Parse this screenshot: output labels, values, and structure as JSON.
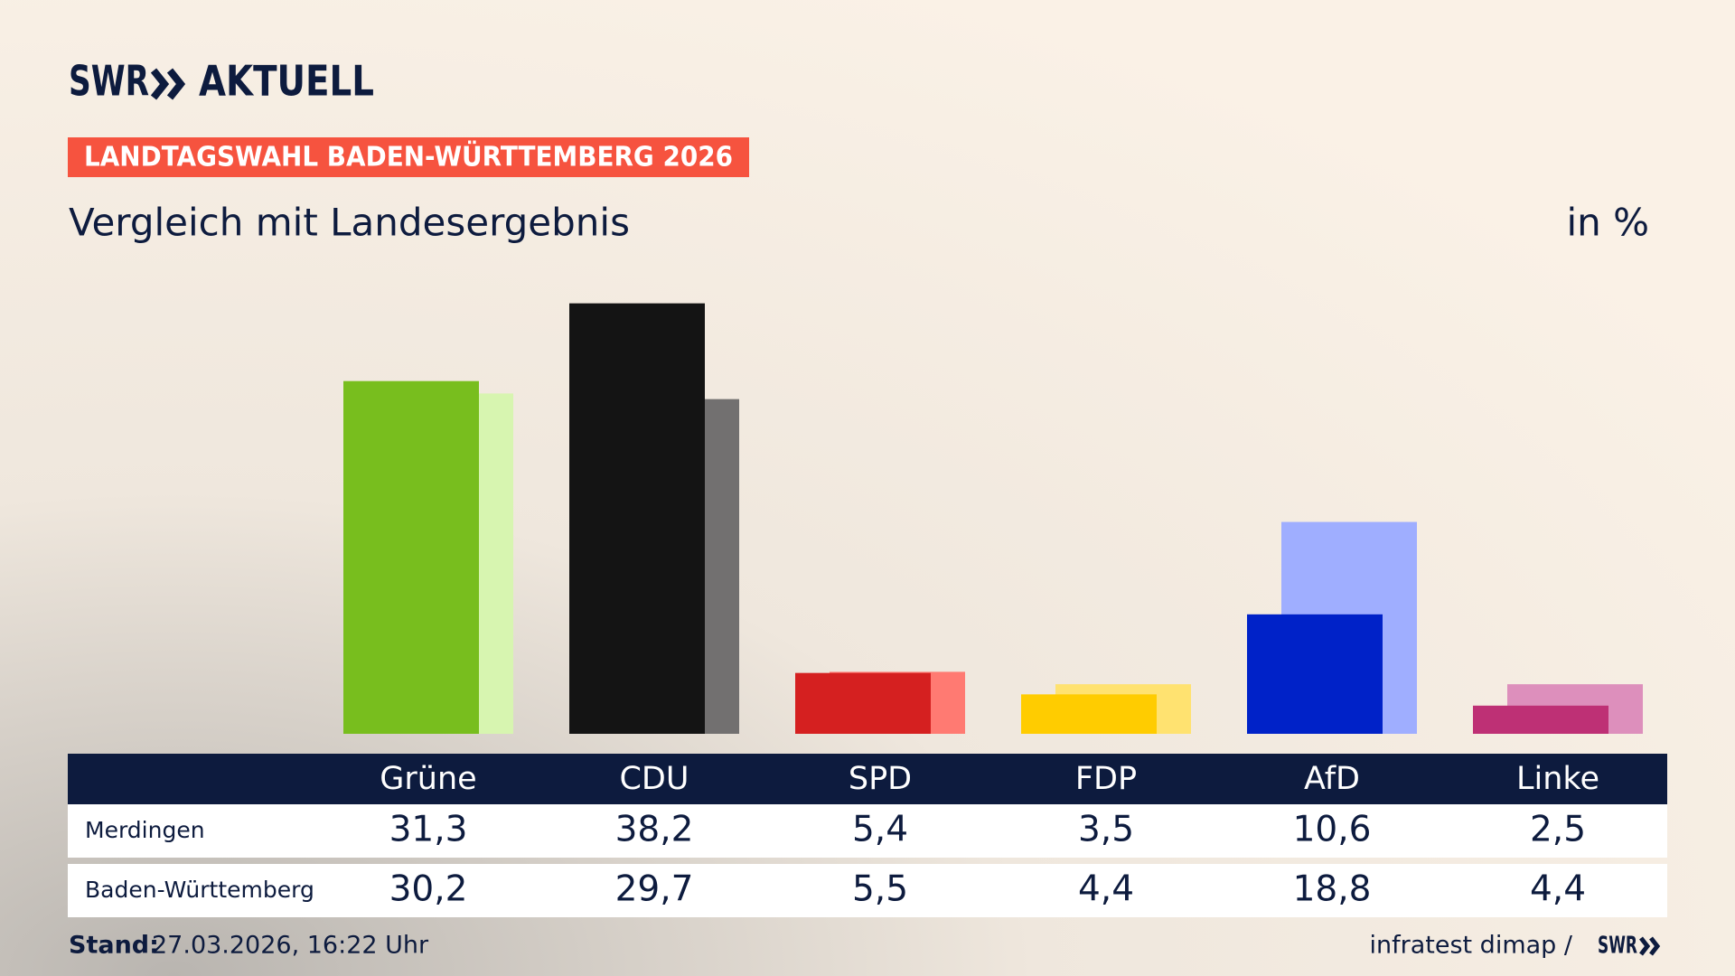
{
  "chart_data": {
    "type": "bar",
    "brand": "SWR",
    "brand_sub": "AKTUELL",
    "kicker": "LANDTAGSWAHL BADEN-WÜRTTEMBERG 2026",
    "title": "Vergleich mit Landesergebnis",
    "unit": "in %",
    "categories": [
      "Grüne",
      "CDU",
      "SPD",
      "FDP",
      "AfD",
      "Linke"
    ],
    "series": [
      {
        "name": "Merdingen",
        "colors": [
          "#78be1e",
          "#141414",
          "#d52020",
          "#ffcc00",
          "#0022c8",
          "#be3075"
        ],
        "values": [
          31.3,
          38.2,
          5.4,
          3.5,
          10.6,
          2.5
        ],
        "value_labels": [
          "31,3",
          "38,2",
          "5,4",
          "3,5",
          "10,6",
          "2,5"
        ]
      },
      {
        "name": "Baden-Württemberg",
        "colors": [
          "#d7f5b0",
          "#727070",
          "#ff7a72",
          "#ffe270",
          "#9faeff",
          "#dd8fbc"
        ],
        "values": [
          30.2,
          29.7,
          5.5,
          4.4,
          18.8,
          4.4
        ],
        "value_labels": [
          "30,2",
          "29,7",
          "5,5",
          "4,4",
          "18,8",
          "4,4"
        ]
      }
    ],
    "stand_label": "Stand:",
    "stand": "27.03.2026, 16:22 Uhr",
    "source": "infratest dimap /",
    "source_brand": "SWR"
  }
}
